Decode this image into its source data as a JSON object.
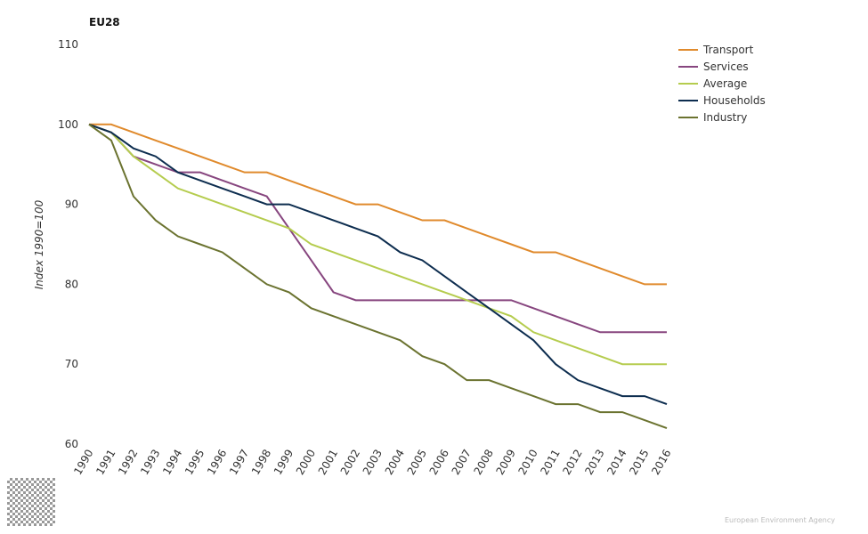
{
  "chart_data": {
    "type": "line",
    "title": "EU28",
    "ylabel": "Index 1990=100",
    "xlabel": "",
    "ylim": [
      60,
      110
    ],
    "yticks": [
      60,
      70,
      80,
      90,
      100,
      110
    ],
    "grid": false,
    "legend_position": "top-right",
    "x": [
      "1990",
      "1991",
      "1992",
      "1993",
      "1994",
      "1995",
      "1996",
      "1997",
      "1998",
      "1999",
      "2000",
      "2001",
      "2002",
      "2003",
      "2004",
      "2005",
      "2006",
      "2007",
      "2008",
      "2009",
      "2010",
      "2011",
      "2012",
      "2013",
      "2014",
      "2015",
      "2016"
    ],
    "series": [
      {
        "name": "Transport",
        "color": "#e08a2c",
        "values": [
          100,
          100,
          99,
          98,
          97,
          96,
          95,
          94,
          94,
          93,
          92,
          91,
          90,
          90,
          89,
          88,
          88,
          87,
          86,
          85,
          84,
          84,
          83,
          82,
          81,
          80,
          80
        ]
      },
      {
        "name": "Services",
        "color": "#87467f",
        "values": [
          100,
          99,
          96,
          95,
          94,
          94,
          93,
          92,
          91,
          87,
          83,
          79,
          78,
          78,
          78,
          78,
          78,
          78,
          78,
          78,
          77,
          76,
          75,
          74,
          74,
          74,
          74
        ]
      },
      {
        "name": "Average",
        "color": "#b5cc4e",
        "values": [
          100,
          99,
          96,
          94,
          92,
          91,
          90,
          89,
          88,
          87,
          85,
          84,
          83,
          82,
          81,
          80,
          79,
          78,
          77,
          76,
          74,
          73,
          72,
          71,
          70,
          70,
          70
        ]
      },
      {
        "name": "Households",
        "color": "#0d2d4f",
        "values": [
          100,
          99,
          97,
          96,
          94,
          93,
          92,
          91,
          90,
          90,
          89,
          88,
          87,
          86,
          84,
          83,
          81,
          79,
          77,
          75,
          73,
          70,
          68,
          67,
          66,
          66,
          65
        ]
      },
      {
        "name": "Industry",
        "color": "#6b7330",
        "values": [
          100,
          98,
          91,
          88,
          86,
          85,
          84,
          82,
          80,
          79,
          77,
          76,
          75,
          74,
          73,
          71,
          70,
          68,
          68,
          67,
          66,
          65,
          65,
          64,
          64,
          63,
          62
        ]
      }
    ]
  },
  "credit": "European Environment Agency"
}
